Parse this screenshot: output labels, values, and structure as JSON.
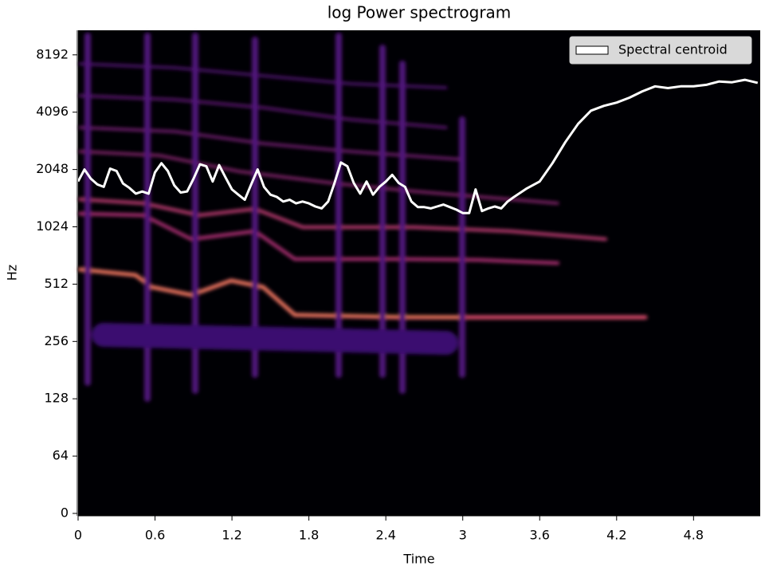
{
  "chart_data": {
    "type": "line",
    "title": "log Power spectrogram",
    "x_label": "Time",
    "y_label": "Hz",
    "yscale": "symlog",
    "linthresh": 64,
    "xlim": [
      0,
      5.32
    ],
    "ylim": [
      0,
      11025
    ],
    "xticks": [
      0,
      0.6,
      1.2,
      1.8,
      2.4,
      3,
      3.6,
      4.2,
      4.8
    ],
    "yticks": [
      0,
      64,
      128,
      256,
      512,
      1024,
      2048,
      4096,
      8192
    ],
    "legend": "upper right",
    "x": [
      0,
      0.05,
      0.1,
      0.15,
      0.2,
      0.25,
      0.3,
      0.35,
      0.4,
      0.45,
      0.5,
      0.55,
      0.6,
      0.65,
      0.7,
      0.75,
      0.8,
      0.85,
      0.9,
      0.95,
      1.0,
      1.05,
      1.1,
      1.15,
      1.2,
      1.25,
      1.3,
      1.35,
      1.4,
      1.45,
      1.5,
      1.55,
      1.6,
      1.65,
      1.7,
      1.75,
      1.8,
      1.85,
      1.9,
      1.95,
      2.0,
      2.05,
      2.1,
      2.15,
      2.2,
      2.25,
      2.3,
      2.35,
      2.4,
      2.45,
      2.5,
      2.55,
      2.6,
      2.65,
      2.7,
      2.75,
      2.8,
      2.85,
      2.9,
      2.95,
      3.0,
      3.05,
      3.1,
      3.15,
      3.2,
      3.25,
      3.3,
      3.35,
      3.4,
      3.5,
      3.6,
      3.7,
      3.8,
      3.9,
      4.0,
      4.1,
      4.2,
      4.3,
      4.4,
      4.5,
      4.6,
      4.7,
      4.8,
      4.9,
      5.0,
      5.1,
      5.2,
      5.3
    ],
    "series": [
      {
        "name": "Spectral centroid",
        "color": "#ffffff",
        "values": [
          1773,
          2048,
          1830,
          1710,
          1660,
          2070,
          2010,
          1730,
          1640,
          1530,
          1570,
          1530,
          1980,
          2210,
          2010,
          1690,
          1550,
          1570,
          1830,
          2180,
          2130,
          1770,
          2160,
          1860,
          1610,
          1510,
          1420,
          1710,
          2050,
          1660,
          1510,
          1470,
          1390,
          1420,
          1360,
          1390,
          1360,
          1310,
          1280,
          1390,
          1740,
          2230,
          2130,
          1740,
          1530,
          1770,
          1510,
          1660,
          1770,
          1920,
          1740,
          1660,
          1390,
          1300,
          1300,
          1280,
          1310,
          1340,
          1300,
          1260,
          1210,
          1210,
          1610,
          1240,
          1280,
          1310,
          1280,
          1390,
          1470,
          1630,
          1770,
          2210,
          2850,
          3560,
          4170,
          4420,
          4600,
          4880,
          5270,
          5600,
          5480,
          5600,
          5600,
          5700,
          5940,
          5880,
          6060,
          5840
        ]
      }
    ]
  }
}
